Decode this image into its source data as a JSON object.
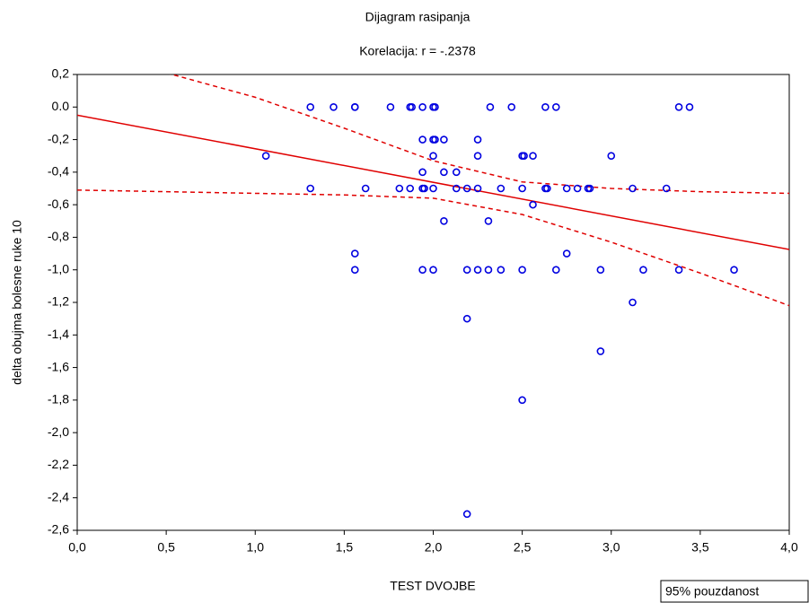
{
  "chart_data": {
    "type": "scatter",
    "title": "Dijagram rasipanja",
    "subtitle": "Korelacija: r = -.2378",
    "x_label": "TEST DVOJBE",
    "y_label": "delta obujma bolesne ruke 10",
    "color": "#0000e0",
    "x": [
      1.31,
      1.44,
      1.56,
      1.56,
      1.76,
      1.87,
      1.88,
      1.94,
      2.0,
      2.01,
      2.32,
      2.44,
      2.63,
      2.69,
      3.38,
      3.44,
      1.94,
      2.0,
      2.01,
      2.06,
      2.25,
      1.06,
      2.0,
      2.25,
      2.5,
      2.51,
      2.56,
      3.0,
      1.94,
      2.06,
      2.13,
      1.31,
      1.62,
      1.81,
      1.87,
      1.94,
      1.95,
      2.0,
      2.13,
      2.19,
      2.25,
      2.38,
      2.5,
      2.63,
      2.64,
      2.75,
      2.81,
      2.87,
      2.88,
      3.12,
      3.31,
      2.56,
      2.06,
      2.31,
      1.56,
      2.75,
      1.56,
      1.94,
      2.0,
      2.19,
      2.25,
      2.31,
      2.38,
      2.5,
      2.69,
      2.94,
      3.18,
      3.38,
      3.69,
      3.12,
      2.19,
      2.94,
      2.5,
      2.19
    ],
    "values": [
      0,
      0,
      0,
      0,
      0,
      0,
      0,
      0,
      0,
      0,
      0,
      0,
      0,
      0,
      0,
      0,
      -0.2,
      -0.2,
      -0.2,
      -0.2,
      -0.2,
      -0.3,
      -0.3,
      -0.3,
      -0.3,
      -0.3,
      -0.3,
      -0.3,
      -0.4,
      -0.4,
      -0.4,
      -0.5,
      -0.5,
      -0.5,
      -0.5,
      -0.5,
      -0.5,
      -0.5,
      -0.5,
      -0.5,
      -0.5,
      -0.5,
      -0.5,
      -0.5,
      -0.5,
      -0.5,
      -0.5,
      -0.5,
      -0.5,
      -0.5,
      -0.5,
      -0.6,
      -0.7,
      -0.7,
      -0.9,
      -0.9,
      -1.0,
      -1.0,
      -1.0,
      -1.0,
      -1.0,
      -1.0,
      -1.0,
      -1.0,
      -1.0,
      -1.0,
      -1.0,
      -1.0,
      -1.0,
      -1.2,
      -1.3,
      -1.5,
      -1.8,
      -2.5
    ],
    "fit_line": {
      "color": "#e00000",
      "x": [
        0,
        4
      ],
      "values": [
        -0.05,
        -0.875
      ]
    },
    "confidence_band": {
      "name": "95% pouzdanost",
      "color": "#e00000",
      "upper": {
        "x": [
          0.5,
          1.0,
          1.5,
          2.0,
          2.5,
          3.0,
          3.5,
          4.0
        ],
        "values": [
          0.21,
          0.06,
          -0.13,
          -0.33,
          -0.46,
          -0.5,
          -0.52,
          -0.53
        ]
      },
      "lower": {
        "x": [
          0,
          0.5,
          1.0,
          1.5,
          2.0,
          2.5,
          3.0,
          3.5,
          4.0
        ],
        "values": [
          -0.51,
          -0.52,
          -0.53,
          -0.54,
          -0.56,
          -0.66,
          -0.83,
          -1.02,
          -1.22
        ]
      }
    },
    "xlim": [
      0,
      4
    ],
    "ylim": [
      -2.6,
      0.2
    ],
    "xticks": [
      {
        "value": 0,
        "label": "0,0"
      },
      {
        "value": 0.5,
        "label": "0,5"
      },
      {
        "value": 1,
        "label": "1,0"
      },
      {
        "value": 1.5,
        "label": "1,5"
      },
      {
        "value": 2,
        "label": "2,0"
      },
      {
        "value": 2.5,
        "label": "2,5"
      },
      {
        "value": 3,
        "label": "3,0"
      },
      {
        "value": 3.5,
        "label": "3,5"
      },
      {
        "value": 4,
        "label": "4,0"
      }
    ],
    "yticks": [
      {
        "value": 0.2,
        "label": "0,2"
      },
      {
        "value": 0,
        "label": "0.0"
      },
      {
        "value": -0.2,
        "label": "-0,2"
      },
      {
        "value": -0.4,
        "label": "-0,4"
      },
      {
        "value": -0.6,
        "label": "-0,6"
      },
      {
        "value": -0.8,
        "label": "-0,8"
      },
      {
        "value": -1,
        "label": "-1,0"
      },
      {
        "value": -1.2,
        "label": "-1,2"
      },
      {
        "value": -1.4,
        "label": "-1,4"
      },
      {
        "value": -1.6,
        "label": "-1,6"
      },
      {
        "value": -1.8,
        "label": "-1,8"
      },
      {
        "value": -2,
        "label": "-2,0"
      },
      {
        "value": -2.2,
        "label": "-2,2"
      },
      {
        "value": -2.4,
        "label": "-2,4"
      },
      {
        "value": -2.6,
        "label": "-2,6"
      }
    ],
    "grid": false
  }
}
